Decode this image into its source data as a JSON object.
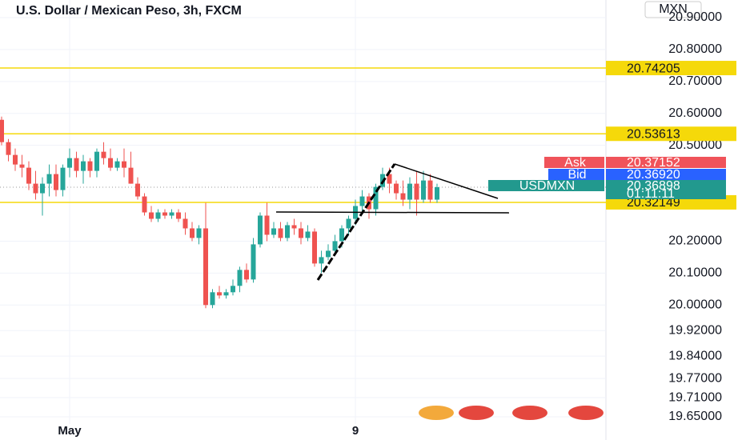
{
  "chart_data": {
    "type": "candlestick",
    "title": "U.S. Dollar / Mexican Peso, 3h, FXCM",
    "currency": "MXN",
    "categories": [
      null,
      null,
      null,
      null,
      null,
      null,
      null,
      null,
      null,
      null,
      "May",
      null,
      null,
      null,
      null,
      null,
      null,
      null,
      null,
      null,
      null,
      null,
      null,
      null,
      null,
      null,
      null,
      null,
      null,
      null,
      null,
      null,
      null,
      null,
      null,
      null,
      null,
      null,
      null,
      null,
      null,
      null,
      null,
      null,
      null,
      null,
      null,
      null,
      null,
      null,
      null,
      null,
      "9",
      null,
      null,
      null,
      null,
      null,
      null,
      null,
      null,
      null,
      null,
      null,
      null
    ],
    "open": [
      20.58,
      20.51,
      20.47,
      20.44,
      20.43,
      20.38,
      20.35,
      20.38,
      20.41,
      20.36,
      20.43,
      20.46,
      20.42,
      20.45,
      20.42,
      20.48,
      20.46,
      20.43,
      20.45,
      20.43,
      20.38,
      20.34,
      20.29,
      20.27,
      20.29,
      20.28,
      20.29,
      20.27,
      20.24,
      20.21,
      20.24,
      20.0,
      20.04,
      20.03,
      20.04,
      20.06,
      20.11,
      20.08,
      20.19,
      20.28,
      20.22,
      20.24,
      20.21,
      20.25,
      20.24,
      20.21,
      20.23,
      20.13,
      20.15,
      20.17,
      20.2,
      20.24,
      20.27,
      20.31,
      20.34,
      20.3,
      20.37,
      20.41,
      20.38,
      20.35,
      20.33,
      20.38,
      20.33,
      20.39,
      20.33
    ],
    "high": [
      20.59,
      20.52,
      20.49,
      20.47,
      20.45,
      20.42,
      20.4,
      20.44,
      20.44,
      20.44,
      20.49,
      20.48,
      20.47,
      20.46,
      20.49,
      20.51,
      20.49,
      20.46,
      20.49,
      20.48,
      20.4,
      20.35,
      20.31,
      20.3,
      20.3,
      20.3,
      20.3,
      20.29,
      20.26,
      20.25,
      20.32,
      20.05,
      20.06,
      20.05,
      20.08,
      20.12,
      20.13,
      20.21,
      20.29,
      20.32,
      20.26,
      20.26,
      20.26,
      20.27,
      20.26,
      20.25,
      20.24,
      20.17,
      20.19,
      20.22,
      20.25,
      20.28,
      20.33,
      20.36,
      20.35,
      20.38,
      20.43,
      20.43,
      20.39,
      20.39,
      20.4,
      20.42,
      20.42,
      20.41,
      20.38
    ],
    "low": [
      20.5,
      20.45,
      20.42,
      20.4,
      20.36,
      20.33,
      20.28,
      20.34,
      20.34,
      20.34,
      20.4,
      20.4,
      20.38,
      20.4,
      20.4,
      20.44,
      20.42,
      20.42,
      20.4,
      20.38,
      20.33,
      20.28,
      20.26,
      20.26,
      20.27,
      20.27,
      20.26,
      20.22,
      20.2,
      20.19,
      19.99,
      19.99,
      20.02,
      20.02,
      20.03,
      20.04,
      20.07,
      20.07,
      20.18,
      20.2,
      20.21,
      20.2,
      20.2,
      20.22,
      20.19,
      20.2,
      20.12,
      20.1,
      20.14,
      20.16,
      20.18,
      20.22,
      20.25,
      20.29,
      20.27,
      20.28,
      20.36,
      20.35,
      20.33,
      20.31,
      20.3,
      20.28,
      20.32,
      20.32,
      20.32
    ],
    "close": [
      20.51,
      20.47,
      20.44,
      20.43,
      20.38,
      20.35,
      20.38,
      20.41,
      20.36,
      20.43,
      20.46,
      20.42,
      20.45,
      20.42,
      20.48,
      20.46,
      20.43,
      20.45,
      20.43,
      20.38,
      20.34,
      20.29,
      20.27,
      20.29,
      20.28,
      20.29,
      20.27,
      20.24,
      20.21,
      20.24,
      20.0,
      20.04,
      20.03,
      20.04,
      20.06,
      20.11,
      20.08,
      20.19,
      20.28,
      20.22,
      20.24,
      20.21,
      20.25,
      20.24,
      20.21,
      20.23,
      20.13,
      20.15,
      20.17,
      20.2,
      20.24,
      20.27,
      20.31,
      20.34,
      20.3,
      20.37,
      20.41,
      20.38,
      20.35,
      20.33,
      20.38,
      20.33,
      20.39,
      20.33,
      20.36898
    ],
    "up_color": "#26a69a",
    "down_color": "#ef5350",
    "ylim": [
      19.65,
      20.9
    ],
    "yticks": [
      {
        "value": 20.9,
        "label": "20.90000"
      },
      {
        "value": 20.8,
        "label": "20.80000"
      },
      {
        "value": 20.7,
        "label": "20.70000"
      },
      {
        "value": 20.6,
        "label": "20.60000"
      },
      {
        "value": 20.5,
        "label": "20.50000"
      },
      {
        "value": 20.2,
        "label": "20.20000"
      },
      {
        "value": 20.1,
        "label": "20.10000"
      },
      {
        "value": 20.0,
        "label": "20.00000"
      },
      {
        "value": 19.92,
        "label": "19.92000"
      },
      {
        "value": 19.84,
        "label": "19.84000"
      },
      {
        "value": 19.77,
        "label": "19.77000"
      },
      {
        "value": 19.71,
        "label": "19.71000"
      },
      {
        "value": 19.65,
        "label": "19.65000"
      }
    ],
    "levels": [
      20.74205,
      20.53613,
      20.32149
    ],
    "level_color": "#f5d90a",
    "ask": {
      "name": "Ask",
      "value": 20.37152,
      "color": "#f0535a"
    },
    "bid": {
      "name": "Bid",
      "value": 20.3692,
      "label": "20.36920",
      "color": "#2962ff"
    },
    "last": {
      "name": "USDMXN",
      "value": 20.36898,
      "countdown": "01:11:11",
      "color": "#22998e"
    }
  }
}
